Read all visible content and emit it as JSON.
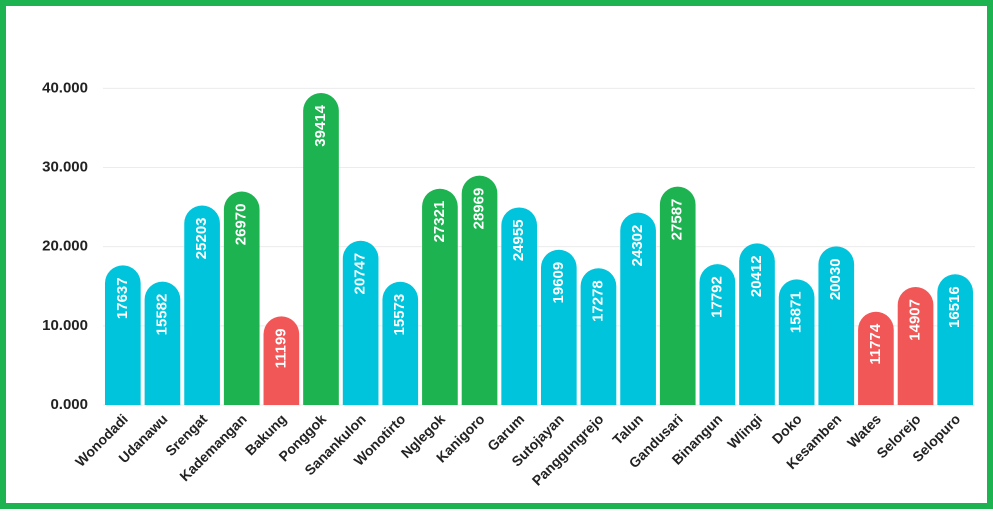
{
  "chart_data": {
    "type": "bar",
    "categories": [
      "Wonodadi",
      "Udanawu",
      "Srengat",
      "Kademangan",
      "Bakung",
      "Ponggok",
      "Sanankulon",
      "Wonotirto",
      "Nglegok",
      "Kanigoro",
      "Garum",
      "Sutojayan",
      "Panggungrejo",
      "Talun",
      "Gandusari",
      "Binangun",
      "Wlingi",
      "Doko",
      "Kesamben",
      "Wates",
      "Selorejo",
      "Selopuro"
    ],
    "values": [
      17637,
      15582,
      25203,
      26970,
      11199,
      39414,
      20747,
      15573,
      27321,
      28969,
      24955,
      19609,
      17278,
      24302,
      27587,
      17792,
      20412,
      15871,
      20030,
      11774,
      14907,
      16516
    ],
    "colors": [
      "#00c4dc",
      "#00c4dc",
      "#00c4dc",
      "#1db350",
      "#f25757",
      "#1db350",
      "#00c4dc",
      "#00c4dc",
      "#1db350",
      "#1db350",
      "#00c4dc",
      "#00c4dc",
      "#00c4dc",
      "#00c4dc",
      "#1db350",
      "#00c4dc",
      "#00c4dc",
      "#00c4dc",
      "#00c4dc",
      "#f25757",
      "#f25757",
      "#00c4dc"
    ],
    "ylim": [
      0,
      48000
    ],
    "yticks": [
      {
        "value": 0,
        "label": "0.000"
      },
      {
        "value": 10000,
        "label": "10.000"
      },
      {
        "value": 20000,
        "label": "20.000"
      },
      {
        "value": 30000,
        "label": "30.000"
      },
      {
        "value": 40000,
        "label": "40.000"
      }
    ],
    "grid": true
  }
}
